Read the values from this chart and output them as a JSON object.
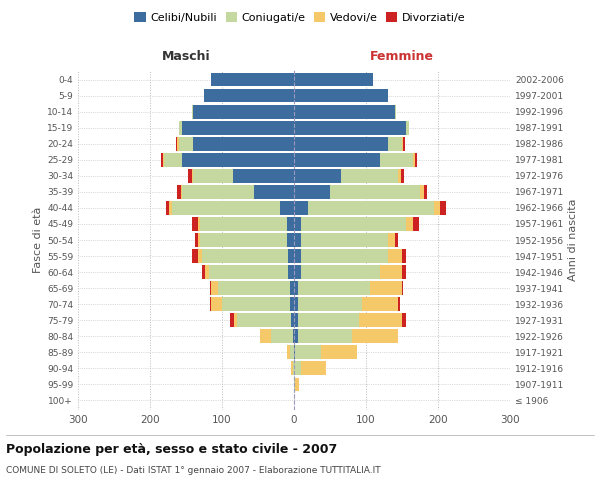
{
  "age_groups": [
    "100+",
    "95-99",
    "90-94",
    "85-89",
    "80-84",
    "75-79",
    "70-74",
    "65-69",
    "60-64",
    "55-59",
    "50-54",
    "45-49",
    "40-44",
    "35-39",
    "30-34",
    "25-29",
    "20-24",
    "15-19",
    "10-14",
    "5-9",
    "0-4"
  ],
  "birth_years": [
    "≤ 1906",
    "1907-1911",
    "1912-1916",
    "1917-1921",
    "1922-1926",
    "1927-1931",
    "1932-1936",
    "1937-1941",
    "1942-1946",
    "1947-1951",
    "1952-1956",
    "1957-1961",
    "1962-1966",
    "1967-1971",
    "1972-1976",
    "1977-1981",
    "1982-1986",
    "1987-1991",
    "1992-1996",
    "1997-2001",
    "2002-2006"
  ],
  "colors": {
    "celibi": "#3d6d9e",
    "coniugati": "#c5d8a0",
    "vedovi": "#f5c96a",
    "divorziati": "#cc2222"
  },
  "males": {
    "celibi": [
      0,
      0,
      0,
      0,
      2,
      4,
      5,
      5,
      8,
      8,
      10,
      10,
      20,
      55,
      85,
      155,
      140,
      155,
      140,
      125,
      115
    ],
    "coniugati": [
      0,
      0,
      2,
      5,
      30,
      75,
      95,
      100,
      110,
      120,
      120,
      120,
      150,
      100,
      55,
      25,
      20,
      5,
      2,
      0,
      0
    ],
    "vedovi": [
      0,
      0,
      2,
      5,
      15,
      5,
      15,
      10,
      5,
      5,
      3,
      3,
      3,
      2,
      2,
      2,
      2,
      0,
      0,
      0,
      0
    ],
    "divorziati": [
      0,
      0,
      0,
      0,
      0,
      5,
      2,
      2,
      5,
      8,
      5,
      8,
      5,
      5,
      5,
      3,
      2,
      0,
      0,
      0,
      0
    ]
  },
  "females": {
    "celibi": [
      0,
      0,
      0,
      2,
      5,
      5,
      5,
      5,
      10,
      10,
      10,
      10,
      20,
      50,
      65,
      120,
      130,
      155,
      140,
      130,
      110
    ],
    "coniugati": [
      0,
      2,
      10,
      35,
      75,
      85,
      90,
      100,
      110,
      120,
      120,
      145,
      175,
      125,
      80,
      45,
      20,
      5,
      2,
      0,
      0
    ],
    "vedovi": [
      0,
      5,
      35,
      50,
      65,
      60,
      50,
      45,
      30,
      20,
      10,
      10,
      8,
      5,
      3,
      3,
      2,
      0,
      0,
      0,
      0
    ],
    "divorziati": [
      0,
      0,
      0,
      0,
      0,
      5,
      2,
      2,
      5,
      5,
      5,
      8,
      8,
      5,
      5,
      3,
      2,
      0,
      0,
      0,
      0
    ]
  },
  "title": "Popolazione per età, sesso e stato civile - 2007",
  "subtitle": "COMUNE DI SOLETO (LE) - Dati ISTAT 1° gennaio 2007 - Elaborazione TUTTITALIA.IT",
  "ylabel_left": "Fasce di età",
  "ylabel_right": "Anni di nascita",
  "xlabel_left": "Maschi",
  "xlabel_right": "Femmine",
  "xlim": 300,
  "legend_labels": [
    "Celibi/Nubili",
    "Coniugati/e",
    "Vedovi/e",
    "Divorziati/e"
  ],
  "background_color": "#ffffff",
  "grid_color": "#cccccc"
}
